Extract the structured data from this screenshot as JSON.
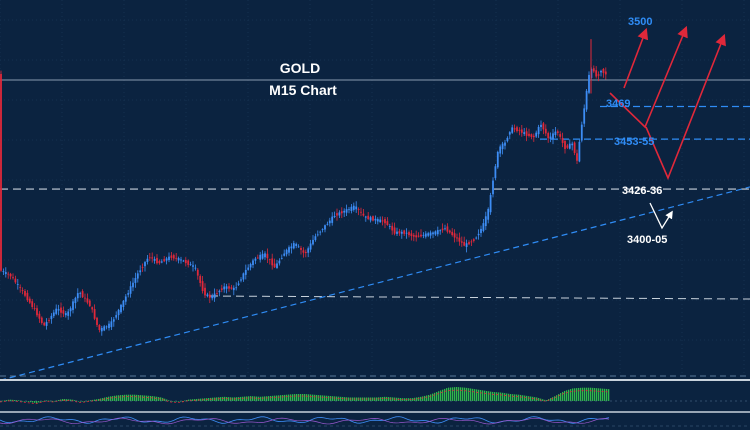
{
  "chart_data": {
    "type": "candlestick",
    "title": "GOLD",
    "subtitle": "M15 Chart",
    "ylim": [
      3345,
      3518
    ],
    "levels": [
      {
        "label": "3500",
        "value": 3500,
        "color": "#2f8cf5"
      },
      {
        "label": "3469",
        "value": 3469,
        "color": "#2f8cf5"
      },
      {
        "label": "3453-55",
        "value": 3454,
        "color": "#2f8cf5"
      },
      {
        "label": "3426-36",
        "value": 3431,
        "color": "#ffffff"
      },
      {
        "label": "3400-05",
        "value": 3403,
        "color": "#ffffff"
      }
    ],
    "trendline": {
      "start": 3343,
      "end": 3432,
      "color": "#2f8cf5"
    },
    "projections": {
      "red": [
        [
          [
            624,
            88
          ],
          [
            646,
            30
          ]
        ],
        [
          [
            610,
            93
          ],
          [
            645,
            127
          ],
          [
            686,
            28
          ]
        ],
        [
          [
            646,
            127
          ],
          [
            668,
            178
          ],
          [
            724,
            36
          ]
        ]
      ],
      "white": [
        [
          [
            650,
            203
          ],
          [
            662,
            228
          ],
          [
            672,
            212
          ]
        ]
      ]
    },
    "price_path": [
      [
        0,
        3394
      ],
      [
        12,
        3391
      ],
      [
        25,
        3383
      ],
      [
        35,
        3376
      ],
      [
        45,
        3368
      ],
      [
        58,
        3376
      ],
      [
        68,
        3373
      ],
      [
        80,
        3384
      ],
      [
        92,
        3377
      ],
      [
        100,
        3366
      ],
      [
        112,
        3369
      ],
      [
        122,
        3377
      ],
      [
        132,
        3386
      ],
      [
        140,
        3393
      ],
      [
        150,
        3400
      ],
      [
        160,
        3397
      ],
      [
        172,
        3400
      ],
      [
        184,
        3398
      ],
      [
        196,
        3395
      ],
      [
        205,
        3383
      ],
      [
        212,
        3381
      ],
      [
        225,
        3386
      ],
      [
        236,
        3385
      ],
      [
        246,
        3393
      ],
      [
        256,
        3399
      ],
      [
        266,
        3401
      ],
      [
        276,
        3395
      ],
      [
        286,
        3402
      ],
      [
        296,
        3406
      ],
      [
        306,
        3401
      ],
      [
        316,
        3409
      ],
      [
        326,
        3414
      ],
      [
        336,
        3419
      ],
      [
        346,
        3421
      ],
      [
        356,
        3423
      ],
      [
        366,
        3418
      ],
      [
        376,
        3417
      ],
      [
        386,
        3416
      ],
      [
        396,
        3411
      ],
      [
        406,
        3411
      ],
      [
        416,
        3409
      ],
      [
        426,
        3410
      ],
      [
        436,
        3411
      ],
      [
        446,
        3413
      ],
      [
        456,
        3409
      ],
      [
        466,
        3405
      ],
      [
        476,
        3408
      ],
      [
        484,
        3414
      ],
      [
        490,
        3422
      ],
      [
        495,
        3438
      ],
      [
        500,
        3450
      ],
      [
        506,
        3452
      ],
      [
        512,
        3459
      ],
      [
        520,
        3458
      ],
      [
        528,
        3456
      ],
      [
        535,
        3455
      ],
      [
        542,
        3461
      ],
      [
        550,
        3454
      ],
      [
        558,
        3458
      ],
      [
        566,
        3450
      ],
      [
        574,
        3452
      ],
      [
        578,
        3443
      ],
      [
        582,
        3458
      ],
      [
        586,
        3470
      ],
      [
        590,
        3483
      ],
      [
        594,
        3487
      ],
      [
        598,
        3482
      ],
      [
        602,
        3486
      ],
      [
        606,
        3484
      ]
    ],
    "macd": [
      0.0,
      0.1,
      0.05,
      -0.05,
      -0.15,
      0.05,
      0.0,
      0.15,
      0.1,
      -0.05,
      0.05,
      0.15,
      0.3,
      0.4,
      0.45,
      0.45,
      0.4,
      0.35,
      0.25,
      0.0,
      -0.05,
      0.1,
      0.15,
      0.2,
      0.25,
      0.3,
      0.25,
      0.3,
      0.35,
      0.3,
      0.35,
      0.4,
      0.45,
      0.5,
      0.5,
      0.45,
      0.4,
      0.35,
      0.3,
      0.25,
      0.25,
      0.25,
      0.25,
      0.3,
      0.25,
      0.2,
      0.2,
      0.3,
      0.45,
      0.7,
      0.95,
      1.0,
      0.95,
      0.85,
      0.75,
      0.65,
      0.6,
      0.5,
      0.45,
      0.35,
      0.25,
      0.05,
      0.35,
      0.7,
      0.9,
      0.95,
      0.95,
      0.9,
      0.85
    ]
  }
}
